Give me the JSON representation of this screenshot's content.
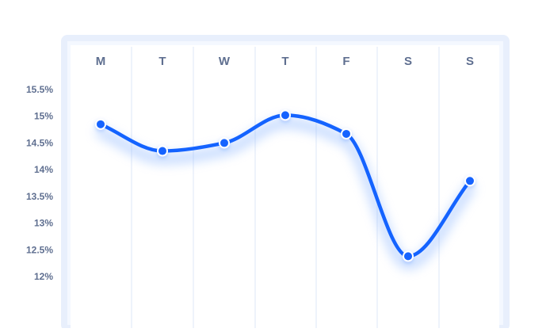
{
  "chart_data": {
    "type": "line",
    "categories": [
      "M",
      "T",
      "W",
      "T",
      "F",
      "S",
      "S"
    ],
    "values": [
      14.85,
      14.35,
      14.5,
      15.02,
      14.67,
      12.38,
      13.79
    ],
    "yticks": [
      "15.5%",
      "15%",
      "14.5%",
      "14%",
      "13.5%",
      "13%",
      "12.5%",
      "12%"
    ],
    "ytick_values": [
      15.5,
      15.0,
      14.5,
      14.0,
      13.5,
      13.0,
      12.5,
      12.0
    ],
    "ylim": [
      12.0,
      15.5
    ],
    "title": "",
    "xlabel": "",
    "ylabel": "",
    "grid": "vertical",
    "legend": "none",
    "colors": {
      "line": "#1463ff",
      "point": "#1463ff",
      "point_stroke": "#ffffff",
      "panel_border": "#e6eefb",
      "grid": "#dde7f7",
      "text": "#5f6f90",
      "glow": "#8fb8ff"
    }
  }
}
